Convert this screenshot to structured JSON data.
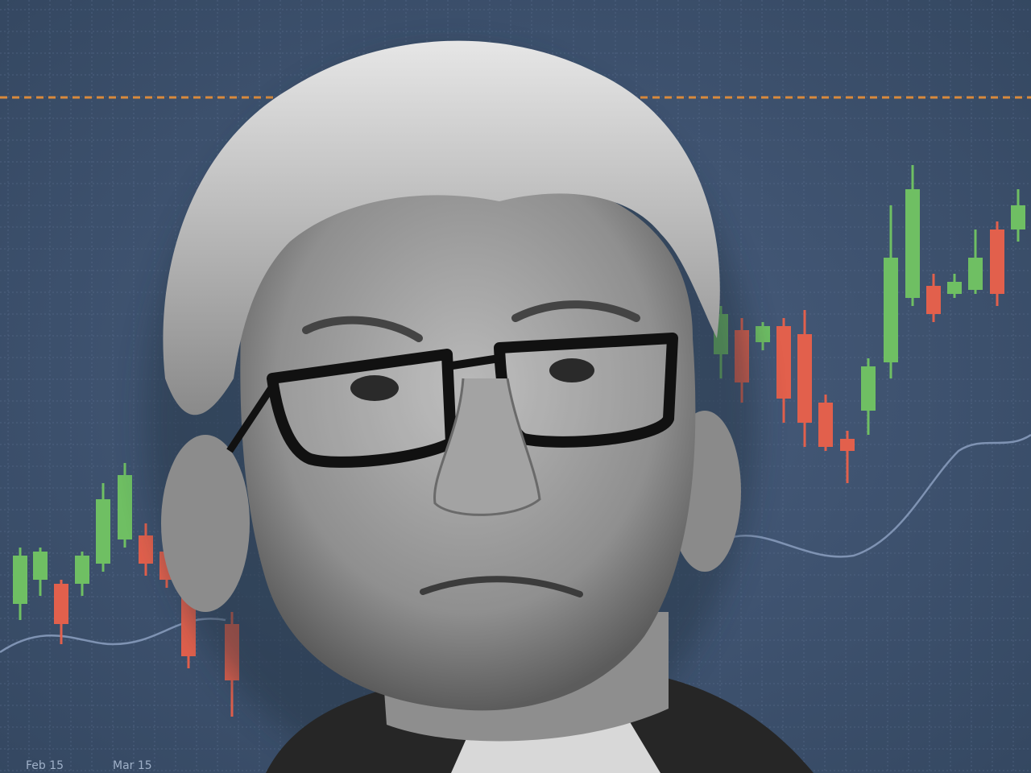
{
  "image": {
    "axis_labels": [
      "Feb 15",
      "Mar 15"
    ]
  }
}
